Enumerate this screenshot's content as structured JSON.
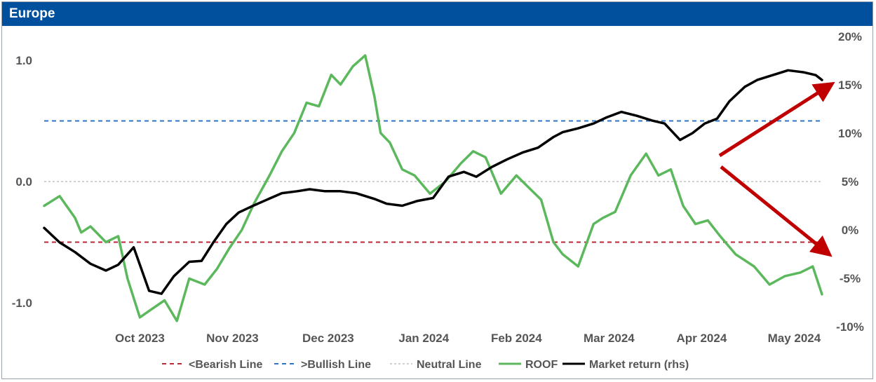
{
  "header": {
    "title": "Europe"
  },
  "chart_data": {
    "type": "line",
    "title": "Europe",
    "left_axis": {
      "ticks": [
        "1.0",
        "0.0",
        "-1.0"
      ],
      "values": [
        1.0,
        0.0,
        -1.0
      ],
      "range": [
        -1.2,
        1.2
      ]
    },
    "right_axis": {
      "ticks": [
        "20%",
        "15%",
        "10%",
        "5%",
        "0%",
        "-5%",
        "-10%"
      ],
      "values": [
        20,
        15,
        10,
        5,
        0,
        -5,
        -10
      ],
      "range": [
        -10,
        20
      ]
    },
    "x_ticks": [
      "Oct 2023",
      "Nov 2023",
      "Dec 2023",
      "Jan 2024",
      "Feb 2024",
      "Mar 2024",
      "Apr 2024",
      "May 2024"
    ],
    "reference_lines": [
      {
        "name": "<Bearish Line",
        "value": -0.5,
        "color": "#b8293a"
      },
      {
        "name": ">Bullish Line",
        "value": 0.5,
        "color": "#2e75c6"
      },
      {
        "name": "Neutral Line",
        "value": 0.0,
        "color": "#c0c0c0"
      }
    ],
    "series": [
      {
        "name": "ROOF",
        "axis": "left",
        "color": "#5cb85c",
        "x": [
          "2023-09-15",
          "2023-09-20",
          "2023-09-25",
          "2023-09-27",
          "2023-09-30",
          "2023-10-05",
          "2023-10-09",
          "2023-10-12",
          "2023-10-16",
          "2023-10-20",
          "2023-10-24",
          "2023-10-28",
          "2023-11-01",
          "2023-11-06",
          "2023-11-10",
          "2023-11-14",
          "2023-11-18",
          "2023-11-22",
          "2023-11-27",
          "2023-12-01",
          "2023-12-05",
          "2023-12-09",
          "2023-12-13",
          "2023-12-17",
          "2023-12-20",
          "2023-12-24",
          "2023-12-28",
          "2023-12-31",
          "2024-01-02",
          "2024-01-05",
          "2024-01-09",
          "2024-01-13",
          "2024-01-18",
          "2024-01-23",
          "2024-01-28",
          "2024-02-01",
          "2024-02-05",
          "2024-02-10",
          "2024-02-15",
          "2024-02-19",
          "2024-02-23",
          "2024-02-27",
          "2024-03-01",
          "2024-03-06",
          "2024-03-11",
          "2024-03-14",
          "2024-03-18",
          "2024-03-23",
          "2024-03-28",
          "2024-04-01",
          "2024-04-05",
          "2024-04-09",
          "2024-04-13",
          "2024-04-17",
          "2024-04-21",
          "2024-04-26",
          "2024-05-02",
          "2024-05-07",
          "2024-05-12",
          "2024-05-17",
          "2024-05-21",
          "2024-05-24"
        ],
        "values": [
          -0.2,
          -0.12,
          -0.3,
          -0.42,
          -0.37,
          -0.5,
          -0.45,
          -0.8,
          -1.12,
          -1.05,
          -0.98,
          -1.15,
          -0.8,
          -0.85,
          -0.72,
          -0.55,
          -0.4,
          -0.18,
          0.05,
          0.25,
          0.4,
          0.65,
          0.62,
          0.88,
          0.8,
          0.95,
          1.04,
          0.7,
          0.4,
          0.32,
          0.1,
          0.05,
          -0.1,
          0.0,
          0.15,
          0.25,
          0.2,
          -0.1,
          0.05,
          -0.05,
          -0.15,
          -0.5,
          -0.6,
          -0.7,
          -0.35,
          -0.3,
          -0.25,
          0.05,
          0.23,
          0.05,
          0.1,
          -0.2,
          -0.35,
          -0.32,
          -0.45,
          -0.6,
          -0.7,
          -0.85,
          -0.78,
          -0.75,
          -0.7,
          -0.93
        ]
      },
      {
        "name": "Market return (rhs)",
        "axis": "right",
        "color": "#000000",
        "x": [
          "2023-09-15",
          "2023-09-20",
          "2023-09-25",
          "2023-09-30",
          "2023-10-05",
          "2023-10-09",
          "2023-10-14",
          "2023-10-19",
          "2023-10-23",
          "2023-10-27",
          "2023-11-01",
          "2023-11-05",
          "2023-11-09",
          "2023-11-13",
          "2023-11-17",
          "2023-11-21",
          "2023-11-26",
          "2023-12-01",
          "2023-12-06",
          "2023-12-10",
          "2023-12-15",
          "2023-12-20",
          "2023-12-25",
          "2023-12-31",
          "2024-01-04",
          "2024-01-09",
          "2024-01-14",
          "2024-01-19",
          "2024-01-24",
          "2024-01-29",
          "2024-02-02",
          "2024-02-07",
          "2024-02-12",
          "2024-02-17",
          "2024-02-22",
          "2024-02-27",
          "2024-03-01",
          "2024-03-06",
          "2024-03-11",
          "2024-03-15",
          "2024-03-20",
          "2024-03-25",
          "2024-03-30",
          "2024-04-03",
          "2024-04-08",
          "2024-04-12",
          "2024-04-16",
          "2024-04-20",
          "2024-04-24",
          "2024-04-29",
          "2024-05-03",
          "2024-05-08",
          "2024-05-13",
          "2024-05-18",
          "2024-05-22",
          "2024-05-24"
        ],
        "values": [
          0.2,
          -1.3,
          -2.3,
          -3.5,
          -4.2,
          -3.6,
          -1.8,
          -6.3,
          -6.6,
          -4.8,
          -3.3,
          -3.2,
          -1.2,
          0.6,
          1.8,
          2.4,
          3.1,
          3.8,
          4.0,
          4.2,
          4.0,
          4.0,
          3.8,
          3.2,
          2.7,
          2.5,
          3.0,
          3.3,
          5.5,
          6.0,
          5.5,
          6.5,
          7.3,
          8.0,
          8.5,
          9.6,
          10.1,
          10.5,
          11.0,
          11.6,
          12.2,
          11.8,
          11.3,
          11.0,
          9.3,
          10.0,
          11.0,
          11.5,
          13.3,
          14.8,
          15.5,
          16.0,
          16.5,
          16.3,
          16.0,
          15.5
        ]
      }
    ],
    "legend": [
      "<Bearish Line",
      ">Bullish Line",
      "Neutral Line",
      "ROOF",
      "Market return (rhs)"
    ],
    "legend_position": "bottom"
  }
}
